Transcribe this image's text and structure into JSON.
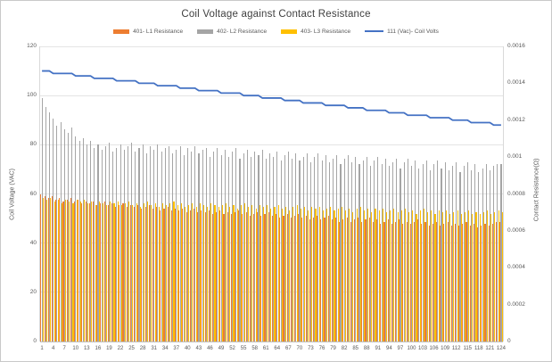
{
  "chart_data": {
    "type": "combo-bar-line",
    "title": "Coil Voltage against Contact Resistance",
    "points": 124,
    "grid": true,
    "legend_position": "top",
    "x_tick_labels": [
      "1",
      "4",
      "7",
      "10",
      "13",
      "16",
      "19",
      "22",
      "25",
      "28",
      "31",
      "34",
      "37",
      "40",
      "43",
      "46",
      "49",
      "52",
      "55",
      "58",
      "61",
      "64",
      "67",
      "70",
      "73",
      "76",
      "79",
      "82",
      "85",
      "88",
      "91",
      "94",
      "97",
      "100",
      "103",
      "106",
      "109",
      "112",
      "115",
      "118",
      "121",
      "124"
    ],
    "axes": {
      "left": {
        "title": "Coil Voltage (VAC)",
        "min": 0,
        "max": 120,
        "ticks": [
          "0",
          "20",
          "40",
          "60",
          "80",
          "100",
          "120"
        ]
      },
      "right": {
        "title": "Contact Resistance(Ω)",
        "min": 0,
        "max": 0.0016,
        "ticks": [
          "0",
          "0.0002",
          "0.0004",
          "0.0006",
          "0.0008",
          "0.001",
          "0.0012",
          "0.0014",
          "0.0016"
        ]
      }
    },
    "series": [
      {
        "name": "401- L1 Resistance",
        "type": "bar",
        "axis": "right",
        "color": "#ED7D31",
        "values": [
          0.0008,
          0.00079,
          0.00078,
          0.00079,
          0.00077,
          0.00078,
          0.00076,
          0.00077,
          0.00078,
          0.00076,
          0.00077,
          0.00075,
          0.00076,
          0.00075,
          0.00076,
          0.00074,
          0.00075,
          0.00076,
          0.00074,
          0.00075,
          0.00073,
          0.00074,
          0.00075,
          0.00073,
          0.00074,
          0.00073,
          0.00074,
          0.00072,
          0.00073,
          0.00074,
          0.00072,
          0.00073,
          0.00071,
          0.00072,
          0.00073,
          0.00071,
          0.00072,
          0.00071,
          0.00072,
          0.0007,
          0.00071,
          0.00072,
          0.0007,
          0.00071,
          0.0007,
          0.00071,
          0.00069,
          0.0007,
          0.00071,
          0.00069,
          0.0007,
          0.00069,
          0.0007,
          0.00071,
          0.00069,
          0.0007,
          0.00068,
          0.00069,
          0.0007,
          0.00068,
          0.00069,
          0.0007,
          0.00068,
          0.00069,
          0.00067,
          0.00068,
          0.00069,
          0.00067,
          0.00068,
          0.00069,
          0.00067,
          0.00068,
          0.00066,
          0.00067,
          0.00068,
          0.00066,
          0.00067,
          0.00068,
          0.00066,
          0.00067,
          0.00065,
          0.00066,
          0.00067,
          0.00065,
          0.00066,
          0.00067,
          0.00065,
          0.00066,
          0.00067,
          0.00065,
          0.00066,
          0.00064,
          0.00065,
          0.00066,
          0.00064,
          0.00065,
          0.00066,
          0.00064,
          0.00065,
          0.00064,
          0.00065,
          0.00066,
          0.00064,
          0.00065,
          0.00063,
          0.00064,
          0.00065,
          0.00063,
          0.00064,
          0.00065,
          0.00063,
          0.00064,
          0.00063,
          0.00064,
          0.00065,
          0.00063,
          0.00064,
          0.00062,
          0.00063,
          0.00064,
          0.00063,
          0.00064,
          0.00065,
          0.00065
        ]
      },
      {
        "name": "402- L2 Resistance",
        "type": "bar",
        "axis": "right",
        "color": "#A5A5A5",
        "values": [
          0.00132,
          0.00127,
          0.00124,
          0.00121,
          0.00117,
          0.00119,
          0.00115,
          0.00113,
          0.00116,
          0.00111,
          0.00109,
          0.0011,
          0.00107,
          0.00109,
          0.00105,
          0.00107,
          0.00104,
          0.00106,
          0.00108,
          0.00103,
          0.00105,
          0.00107,
          0.00104,
          0.00106,
          0.00108,
          0.00103,
          0.00105,
          0.00107,
          0.00102,
          0.00106,
          0.00104,
          0.00107,
          0.00103,
          0.00105,
          0.00106,
          0.00102,
          0.00104,
          0.00106,
          0.00101,
          0.00105,
          0.00103,
          0.00106,
          0.00102,
          0.00104,
          0.00105,
          0.001,
          0.00103,
          0.00105,
          0.00101,
          0.00104,
          0.001,
          0.00103,
          0.00105,
          0.00099,
          0.00102,
          0.00104,
          0.001,
          0.00103,
          0.00101,
          0.00104,
          0.00099,
          0.00102,
          0.001,
          0.00103,
          0.00098,
          0.00101,
          0.00103,
          0.00099,
          0.00102,
          0.00098,
          0.001,
          0.00102,
          0.00097,
          0.001,
          0.00102,
          0.00098,
          0.00101,
          0.00097,
          0.00099,
          0.00101,
          0.00096,
          0.00099,
          0.00101,
          0.00097,
          0.001,
          0.00096,
          0.00098,
          0.001,
          0.00095,
          0.00098,
          0.001,
          0.00096,
          0.00099,
          0.00095,
          0.00097,
          0.00099,
          0.00094,
          0.00097,
          0.00099,
          0.00095,
          0.00098,
          0.00094,
          0.00096,
          0.00098,
          0.00093,
          0.00096,
          0.00098,
          0.00094,
          0.00097,
          0.00093,
          0.00095,
          0.00097,
          0.00092,
          0.00095,
          0.00097,
          0.00093,
          0.00096,
          0.00092,
          0.00094,
          0.00096,
          0.00093,
          0.00095,
          0.00096,
          0.00096
        ]
      },
      {
        "name": "403- L3 Resistance",
        "type": "bar",
        "axis": "right",
        "color": "#FFC000",
        "values": [
          0.00078,
          0.00077,
          0.00078,
          0.00076,
          0.00077,
          0.00075,
          0.00077,
          0.00076,
          0.00075,
          0.00077,
          0.00076,
          0.00077,
          0.00075,
          0.00076,
          0.00074,
          0.00076,
          0.00075,
          0.00074,
          0.00076,
          0.00075,
          0.00076,
          0.00074,
          0.00075,
          0.00076,
          0.00074,
          0.00075,
          0.00073,
          0.00075,
          0.00076,
          0.00074,
          0.00075,
          0.00073,
          0.00075,
          0.00074,
          0.00075,
          0.00076,
          0.00074,
          0.00075,
          0.00073,
          0.00074,
          0.00075,
          0.00073,
          0.00075,
          0.00074,
          0.00073,
          0.00075,
          0.00074,
          0.00073,
          0.00074,
          0.00075,
          0.00073,
          0.00074,
          0.00072,
          0.00074,
          0.00075,
          0.00073,
          0.00074,
          0.00072,
          0.00074,
          0.00073,
          0.00074,
          0.00072,
          0.00073,
          0.00074,
          0.00072,
          0.00073,
          0.00071,
          0.00073,
          0.00074,
          0.00072,
          0.00073,
          0.00071,
          0.00073,
          0.00072,
          0.00073,
          0.00071,
          0.00072,
          0.00073,
          0.00071,
          0.00072,
          0.00073,
          0.00071,
          0.00072,
          0.0007,
          0.00072,
          0.00073,
          0.00071,
          0.00072,
          0.0007,
          0.00072,
          0.00071,
          0.00072,
          0.0007,
          0.00071,
          0.00072,
          0.0007,
          0.00071,
          0.00072,
          0.0007,
          0.00071,
          0.00069,
          0.00071,
          0.00072,
          0.0007,
          0.00071,
          0.00069,
          0.00071,
          0.0007,
          0.00071,
          0.00069,
          0.0007,
          0.00071,
          0.00069,
          0.0007,
          0.00071,
          0.00069,
          0.0007,
          0.00069,
          0.0007,
          0.00071,
          0.00069,
          0.0007,
          0.00071,
          0.0007
        ]
      },
      {
        "name": "111 (Vac)- Coil Volts",
        "type": "line",
        "axis": "left",
        "color": "#4472C4",
        "values": [
          110,
          110,
          110,
          109,
          109,
          109,
          109,
          109,
          109,
          108,
          108,
          108,
          108,
          108,
          107,
          107,
          107,
          107,
          107,
          107,
          106,
          106,
          106,
          106,
          106,
          106,
          105,
          105,
          105,
          105,
          105,
          104,
          104,
          104,
          104,
          104,
          104,
          103,
          103,
          103,
          103,
          103,
          102,
          102,
          102,
          102,
          102,
          102,
          101,
          101,
          101,
          101,
          101,
          101,
          100,
          100,
          100,
          100,
          100,
          99,
          99,
          99,
          99,
          99,
          99,
          98,
          98,
          98,
          98,
          98,
          97,
          97,
          97,
          97,
          97,
          97,
          96,
          96,
          96,
          96,
          96,
          96,
          95,
          95,
          95,
          95,
          95,
          94,
          94,
          94,
          94,
          94,
          94,
          93,
          93,
          93,
          93,
          93,
          92,
          92,
          92,
          92,
          92,
          92,
          91,
          91,
          91,
          91,
          91,
          91,
          90,
          90,
          90,
          90,
          90,
          89,
          89,
          89,
          89,
          89,
          89,
          88,
          88,
          88
        ]
      }
    ],
    "colors": {
      "gridline": "#e4e4e4",
      "axis_line": "#bfbfbf",
      "text": "#595959",
      "title_text": "#404040"
    }
  }
}
